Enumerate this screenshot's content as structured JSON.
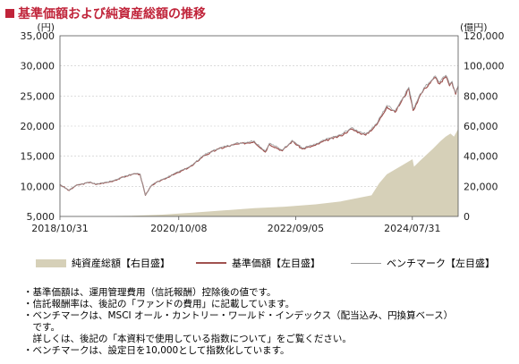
{
  "header": {
    "title": "基準価額および純資産総額の推移"
  },
  "chart_data": {
    "type": "line",
    "left_axis": {
      "unit": "(円)",
      "ticks": [
        "35,000",
        "30,000",
        "25,000",
        "20,000",
        "15,000",
        "10,000",
        "5,000"
      ],
      "range": [
        5000,
        35000
      ]
    },
    "right_axis": {
      "unit": "(億円)",
      "ticks": [
        "120,000",
        "100,000",
        "80,000",
        "60,000",
        "40,000",
        "20,000",
        "0"
      ],
      "range": [
        0,
        120000
      ]
    },
    "x_ticks": [
      "2018/10/31",
      "2020/10/08",
      "2022/09/05",
      "2024/07/31"
    ],
    "x_range": [
      "2018/10/31",
      "2025/04/30"
    ],
    "series": [
      {
        "name": "純資産総額【右目盛】",
        "type": "area",
        "axis": "right",
        "color": "#d6d0b8",
        "points": [
          [
            "2018/10/31",
            0
          ],
          [
            "2019/06/01",
            100
          ],
          [
            "2020/01/01",
            400
          ],
          [
            "2020/07/01",
            1200
          ],
          [
            "2021/01/01",
            2500
          ],
          [
            "2021/07/01",
            4000
          ],
          [
            "2022/01/01",
            5500
          ],
          [
            "2022/07/01",
            6500
          ],
          [
            "2023/01/01",
            8000
          ],
          [
            "2023/06/01",
            10000
          ],
          [
            "2023/12/01",
            14000
          ],
          [
            "2024/01/15",
            22000
          ],
          [
            "2024/03/01",
            28000
          ],
          [
            "2024/06/01",
            34000
          ],
          [
            "2024/08/01",
            38000
          ],
          [
            "2024/08/10",
            33000
          ],
          [
            "2024/09/15",
            37000
          ],
          [
            "2024/12/01",
            45000
          ],
          [
            "2025/01/15",
            50000
          ],
          [
            "2025/02/15",
            53000
          ],
          [
            "2025/03/15",
            55000
          ],
          [
            "2025/04/05",
            53000
          ],
          [
            "2025/04/30",
            58000
          ]
        ]
      },
      {
        "name": "基準価額【左目盛】",
        "type": "line",
        "axis": "left",
        "color": "#a0524f",
        "points": [
          [
            "2018/10/31",
            10300
          ],
          [
            "2018/12/25",
            9300
          ],
          [
            "2019/02/01",
            10100
          ],
          [
            "2019/05/01",
            10700
          ],
          [
            "2019/06/01",
            10300
          ],
          [
            "2019/09/01",
            10800
          ],
          [
            "2019/12/01",
            11700
          ],
          [
            "2020/01/20",
            12100
          ],
          [
            "2020/02/20",
            12000
          ],
          [
            "2020/03/23",
            8500
          ],
          [
            "2020/05/01",
            10200
          ],
          [
            "2020/07/01",
            11100
          ],
          [
            "2020/10/08",
            12300
          ],
          [
            "2020/12/31",
            13500
          ],
          [
            "2021/03/01",
            15000
          ],
          [
            "2021/06/01",
            16200
          ],
          [
            "2021/09/01",
            16900
          ],
          [
            "2021/12/31",
            17400
          ],
          [
            "2022/03/08",
            15700
          ],
          [
            "2022/04/01",
            17000
          ],
          [
            "2022/06/17",
            15900
          ],
          [
            "2022/08/15",
            17500
          ],
          [
            "2022/10/14",
            16200
          ],
          [
            "2022/12/31",
            16800
          ],
          [
            "2023/03/01",
            17600
          ],
          [
            "2023/06/01",
            18400
          ],
          [
            "2023/08/01",
            19500
          ],
          [
            "2023/10/27",
            18500
          ],
          [
            "2023/12/31",
            20200
          ],
          [
            "2024/03/01",
            23200
          ],
          [
            "2024/04/19",
            22300
          ],
          [
            "2024/07/10",
            26200
          ],
          [
            "2024/08/05",
            22600
          ],
          [
            "2024/09/15",
            25100
          ],
          [
            "2024/10/15",
            26300
          ],
          [
            "2024/12/15",
            28100
          ],
          [
            "2025/01/10",
            27000
          ],
          [
            "2025/02/15",
            28200
          ],
          [
            "2025/03/10",
            26700
          ],
          [
            "2025/03/25",
            27200
          ],
          [
            "2025/04/15",
            25300
          ],
          [
            "2025/04/30",
            26500
          ]
        ]
      },
      {
        "name": "ベンチマーク【左目盛】",
        "type": "line",
        "axis": "left",
        "color": "#9a9a9a",
        "points": [
          [
            "2018/10/31",
            10300
          ],
          [
            "2018/12/25",
            9350
          ],
          [
            "2019/02/01",
            10150
          ],
          [
            "2019/05/01",
            10750
          ],
          [
            "2019/06/01",
            10350
          ],
          [
            "2019/09/01",
            10850
          ],
          [
            "2019/12/01",
            11750
          ],
          [
            "2020/01/20",
            12150
          ],
          [
            "2020/02/20",
            12050
          ],
          [
            "2020/03/23",
            8550
          ],
          [
            "2020/05/01",
            10250
          ],
          [
            "2020/07/01",
            11150
          ],
          [
            "2020/10/08",
            12400
          ],
          [
            "2020/12/31",
            13600
          ],
          [
            "2021/03/01",
            15100
          ],
          [
            "2021/06/01",
            16300
          ],
          [
            "2021/09/01",
            17050
          ],
          [
            "2021/12/31",
            17550
          ],
          [
            "2022/03/08",
            15850
          ],
          [
            "2022/04/01",
            17150
          ],
          [
            "2022/06/17",
            16050
          ],
          [
            "2022/08/15",
            17650
          ],
          [
            "2022/10/14",
            16350
          ],
          [
            "2022/12/31",
            16950
          ],
          [
            "2023/03/01",
            17750
          ],
          [
            "2023/06/01",
            18550
          ],
          [
            "2023/08/01",
            19700
          ],
          [
            "2023/10/27",
            18700
          ],
          [
            "2023/12/31",
            20400
          ],
          [
            "2024/03/01",
            23450
          ],
          [
            "2024/04/19",
            22550
          ],
          [
            "2024/07/10",
            26450
          ],
          [
            "2024/08/05",
            22850
          ],
          [
            "2024/09/15",
            25350
          ],
          [
            "2024/10/15",
            26550
          ],
          [
            "2024/12/15",
            28350
          ],
          [
            "2025/01/10",
            27250
          ],
          [
            "2025/02/15",
            28450
          ],
          [
            "2025/03/10",
            26950
          ],
          [
            "2025/03/25",
            27450
          ],
          [
            "2025/04/15",
            25550
          ],
          [
            "2025/04/30",
            26750
          ]
        ]
      }
    ]
  },
  "legend": {
    "net_assets": "純資産総額【右目盛】",
    "nav": "基準価額【左目盛】",
    "benchmark": "ベンチマーク【左目盛】"
  },
  "notes": [
    "・基準価額は、運用管理費用（信託報酬）控除後の値です。",
    "・信託報酬率は、後記の「ファンドの費用」に記載しています。",
    "・ベンチマークは、MSCI オール・カントリー・ワールド・インデックス（配当込み、円換算ベース）",
    "　です。",
    "　詳しくは、後記の「本資料で使用している指数について」をご覧ください。",
    "・ベンチマークは、設定日を10,000として指数化しています。"
  ]
}
